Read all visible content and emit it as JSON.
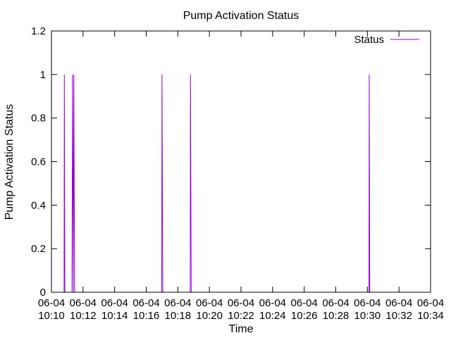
{
  "chart_data": {
    "type": "line",
    "title": "Pump Activation Status",
    "xlabel": "Time",
    "ylabel": "Pump Activation Status",
    "ylim": [
      0,
      1.2
    ],
    "xlim": [
      "06-04 10:10",
      "06-04 10:34"
    ],
    "yticks": [
      "0",
      "0.2",
      "0.4",
      "0.6",
      "0.8",
      "1",
      "1.2"
    ],
    "xticks": [
      {
        "line1": "06-04",
        "line2": "10:10"
      },
      {
        "line1": "06-04",
        "line2": "10:12"
      },
      {
        "line1": "06-04",
        "line2": "10:14"
      },
      {
        "line1": "06-04",
        "line2": "10:16"
      },
      {
        "line1": "06-04",
        "line2": "10:18"
      },
      {
        "line1": "06-04",
        "line2": "10:20"
      },
      {
        "line1": "06-04",
        "line2": "10:22"
      },
      {
        "line1": "06-04",
        "line2": "10:24"
      },
      {
        "line1": "06-04",
        "line2": "10:26"
      },
      {
        "line1": "06-04",
        "line2": "10:28"
      },
      {
        "line1": "06-04",
        "line2": "10:30"
      },
      {
        "line1": "06-04",
        "line2": "10:32"
      },
      {
        "line1": "06-04",
        "line2": "10:34"
      }
    ],
    "grid": false,
    "legend_position": "top-right",
    "series": [
      {
        "name": "Status",
        "color": "#9400d3",
        "points": [
          [
            "06-04 10:10:48",
            0
          ],
          [
            "06-04 10:10:49",
            1
          ],
          [
            "06-04 10:10:51",
            0
          ],
          [
            "06-04 10:11:18",
            0
          ],
          [
            "06-04 10:11:20",
            1
          ],
          [
            "06-04 10:11:23",
            0
          ],
          [
            "06-04 10:11:25",
            1
          ],
          [
            "06-04 10:11:28",
            0
          ],
          [
            "06-04 10:16:59",
            0
          ],
          [
            "06-04 10:17:00",
            1
          ],
          [
            "06-04 10:17:03",
            0
          ],
          [
            "06-04 10:18:47",
            0
          ],
          [
            "06-04 10:18:48",
            1
          ],
          [
            "06-04 10:18:51",
            0
          ],
          [
            "06-04 10:30:06",
            0
          ],
          [
            "06-04 10:30:07",
            1
          ],
          [
            "06-04 10:30:09",
            0
          ]
        ]
      }
    ]
  }
}
